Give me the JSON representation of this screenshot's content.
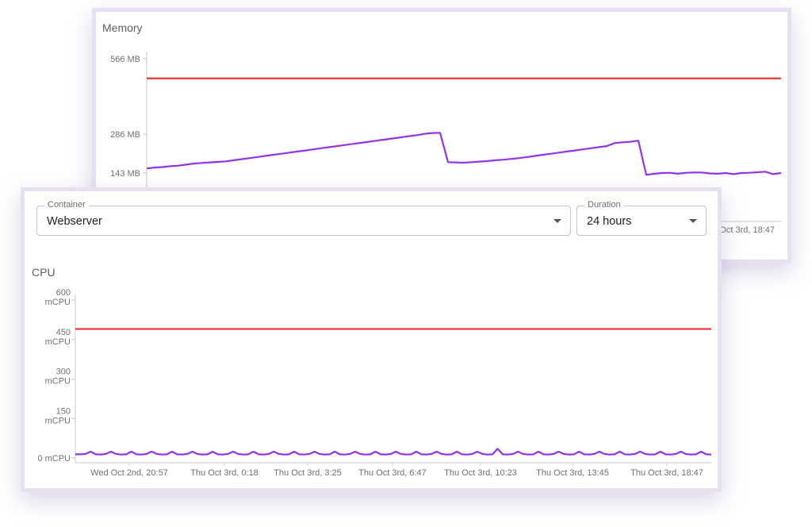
{
  "memory": {
    "title": "Memory",
    "y_ticks": [
      "566 MB",
      "286 MB",
      "143 MB"
    ],
    "x_last_label": "Oct 3rd, 18:47"
  },
  "controls": {
    "container": {
      "label": "Container",
      "value": "Webserver"
    },
    "duration": {
      "label": "Duration",
      "value": "24 hours"
    }
  },
  "cpu": {
    "title": "CPU",
    "y_ticks": [
      {
        "l1": "600",
        "l2": "mCPU"
      },
      {
        "l1": "450",
        "l2": "mCPU"
      },
      {
        "l1": "300",
        "l2": "mCPU"
      },
      {
        "l1": "150",
        "l2": "mCPU"
      },
      {
        "l1": "0 mCPU",
        "l2": ""
      }
    ],
    "x_ticks": [
      "Wed Oct 2nd, 20:57",
      "Thu Oct 3rd, 0:18",
      "Thu Oct 3rd, 3:25",
      "Thu Oct 3rd, 6:47",
      "Thu Oct 3rd, 10:23",
      "Thu Oct 3rd, 13:45",
      "Thu Oct 3rd, 18:47"
    ]
  },
  "colors": {
    "usage": "#9333ea",
    "limit": "#e53935",
    "axis": "#c8c8c8"
  },
  "chart_data": [
    {
      "type": "line",
      "title": "Memory",
      "ylabel": "MB",
      "y_ticks": [
        143,
        286,
        566
      ],
      "series": [
        {
          "values": [
            160,
            163,
            165,
            168,
            170,
            174,
            178,
            180,
            182,
            184,
            186,
            190,
            194,
            198,
            202,
            206,
            210,
            214,
            218,
            222,
            226,
            230,
            234,
            238,
            242,
            246,
            250,
            254,
            258,
            262,
            266,
            270,
            274,
            278,
            282,
            287,
            290,
            291,
            183,
            182,
            181,
            183,
            185,
            187,
            190,
            192,
            195,
            198,
            202,
            206,
            210,
            214,
            218,
            222,
            226,
            230,
            234,
            238,
            242,
            253,
            256,
            258,
            262,
            138,
            141,
            143,
            144,
            141,
            144,
            145,
            145,
            142,
            141,
            143,
            140,
            143,
            144,
            146,
            148,
            140,
            143
          ]
        },
        {
          "values": [
            493,
            493
          ]
        }
      ]
    },
    {
      "type": "line",
      "title": "CPU",
      "ylabel": "mCPU",
      "ylim": [
        0,
        600
      ],
      "y_ticks": [
        0,
        150,
        300,
        450,
        600
      ],
      "x_ticks": [
        "Wed Oct 2nd, 20:57",
        "Thu Oct 3rd, 0:18",
        "Thu Oct 3rd, 3:25",
        "Thu Oct 3rd, 6:47",
        "Thu Oct 3rd, 10:23",
        "Thu Oct 3rd, 13:45",
        "Thu Oct 3rd, 18:47"
      ],
      "series": [
        {
          "values": [
            14,
            14,
            15,
            24,
            14,
            13,
            15,
            24,
            15,
            13,
            14,
            24,
            14,
            13,
            15,
            24,
            15,
            13,
            14,
            24,
            14,
            13,
            15,
            24,
            15,
            13,
            14,
            24,
            14,
            13,
            15,
            24,
            15,
            13,
            14,
            24,
            14,
            13,
            15,
            24,
            15,
            13,
            14,
            24,
            14,
            13,
            15,
            24,
            15,
            13,
            14,
            24,
            14,
            13,
            15,
            24,
            15,
            13,
            14,
            24,
            14,
            13,
            15,
            24,
            15,
            13,
            14,
            24,
            14,
            13,
            15,
            24,
            15,
            13,
            14,
            24,
            14,
            13,
            15,
            24,
            15,
            13,
            14,
            35,
            14,
            13,
            15,
            24,
            15,
            13,
            14,
            24,
            14,
            13,
            15,
            24,
            15,
            13,
            14,
            24,
            14,
            13,
            15,
            24,
            15,
            13,
            14,
            24,
            14,
            13,
            15,
            24,
            15,
            13,
            14,
            24,
            14,
            13,
            15,
            24,
            15,
            13,
            14,
            24,
            14,
            13
          ]
        },
        {
          "values": [
            490,
            490
          ]
        }
      ]
    }
  ]
}
